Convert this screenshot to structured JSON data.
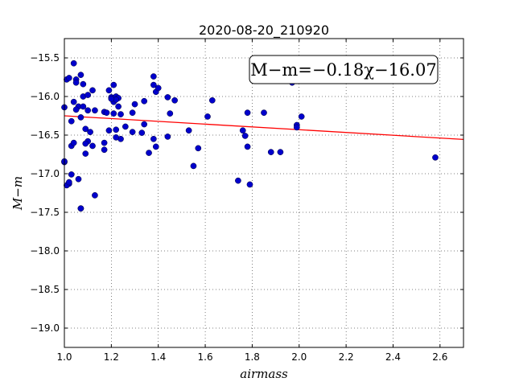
{
  "chart_data": {
    "type": "scatter",
    "title": "2020-08-20_210920",
    "xlabel": "airmass",
    "ylabel": "M−m",
    "xlim": [
      1.0,
      2.7
    ],
    "ylim": [
      -19.25,
      -15.25
    ],
    "xticks": [
      1.0,
      1.2,
      1.4,
      1.6,
      1.8,
      2.0,
      2.2,
      2.4,
      2.6
    ],
    "xtick_labels": [
      "1.0",
      "1.2",
      "1.4",
      "1.6",
      "1.8",
      "2.0",
      "2.2",
      "2.4",
      "2.6"
    ],
    "yticks": [
      -15.5,
      -16.0,
      -16.5,
      -17.0,
      -17.5,
      -18.0,
      -18.5,
      -19.0
    ],
    "ytick_labels": [
      "−15.5",
      "−16.0",
      "−16.5",
      "−17.0",
      "−17.5",
      "−18.0",
      "−18.5",
      "−19.0"
    ],
    "grid": true,
    "colors": {
      "points": "#0000cc",
      "fit_line": "#ff0000"
    },
    "fit": {
      "slope": -0.18,
      "intercept": -16.07,
      "label": "M−m=−0.18χ−16.07",
      "placement": "top-right"
    },
    "series": [
      {
        "x": [
          1.0,
          1.0,
          1.01,
          1.02,
          1.03,
          1.04,
          1.05,
          1.05,
          1.06,
          1.07,
          1.07,
          1.08,
          1.08,
          1.09,
          1.1,
          1.11,
          1.12,
          1.02,
          1.03,
          1.04,
          1.05,
          1.08,
          1.09,
          1.1,
          1.13,
          1.17,
          1.19,
          1.2,
          1.21,
          1.22,
          1.23,
          1.21,
          1.22,
          1.24,
          1.26,
          1.29,
          1.3,
          1.17,
          1.19,
          1.21,
          1.22,
          1.24,
          1.29,
          1.33,
          1.34,
          1.38,
          1.38,
          1.39,
          1.4,
          1.44,
          1.47,
          1.45,
          1.34,
          1.36,
          1.38,
          1.39,
          1.2,
          1.23,
          1.22,
          1.12,
          1.17,
          1.18,
          1.1,
          1.09,
          1.07,
          1.03,
          1.04,
          1.06,
          1.01,
          1.02,
          1.0,
          1.13,
          1.07,
          1.44,
          1.53,
          1.57,
          1.55,
          1.61,
          1.63,
          1.74,
          1.76,
          1.77,
          1.78,
          1.79,
          1.78,
          1.85,
          1.88,
          1.92,
          1.97,
          1.99,
          2.01,
          1.99,
          2.58
        ],
        "y": [
          -16.14,
          -16.85,
          -15.78,
          -15.76,
          -16.32,
          -15.57,
          -15.78,
          -15.82,
          -16.13,
          -15.72,
          -16.27,
          -15.84,
          -16.0,
          -16.42,
          -15.98,
          -16.46,
          -15.92,
          -17.13,
          -16.64,
          -16.07,
          -16.17,
          -16.13,
          -16.74,
          -16.18,
          -16.18,
          -16.2,
          -15.92,
          -16.01,
          -15.85,
          -16.0,
          -16.02,
          -16.07,
          -16.04,
          -16.23,
          -16.39,
          -16.21,
          -16.1,
          -16.6,
          -16.44,
          -16.22,
          -16.43,
          -16.55,
          -16.46,
          -16.47,
          -16.06,
          -15.74,
          -15.85,
          -15.94,
          -15.89,
          -16.01,
          -16.05,
          -16.22,
          -16.36,
          -16.73,
          -16.55,
          -16.65,
          -16.03,
          -16.13,
          -16.53,
          -16.64,
          -16.69,
          -16.21,
          -16.58,
          -16.61,
          -17.45,
          -17.01,
          -16.6,
          -17.07,
          -17.15,
          -17.11,
          -16.84,
          -17.28,
          -17.45,
          -16.52,
          -16.44,
          -16.67,
          -16.9,
          -16.26,
          -16.05,
          -17.09,
          -16.44,
          -16.51,
          -16.65,
          -17.14,
          -16.21,
          -16.21,
          -16.72,
          -16.72,
          -15.82,
          -16.37,
          -16.26,
          -16.4,
          -16.79
        ]
      }
    ]
  }
}
